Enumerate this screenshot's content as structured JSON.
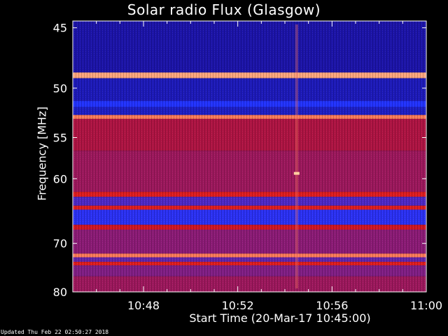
{
  "chart_data": {
    "type": "heatmap",
    "title": "Solar radio Flux (Glasgow)",
    "ylabel": "Frequency [MHz]",
    "xlabel": "Start Time (20-Mar-17 10:45:00)",
    "x_axis": {
      "unit": "time",
      "range": [
        "10:45",
        "11:00"
      ],
      "tick_labels": [
        "10:48",
        "10:52",
        "10:56",
        "11:00"
      ]
    },
    "y_axis": {
      "unit": "MHz",
      "range": [
        44.5,
        80
      ],
      "tick_labels": [
        "45",
        "50",
        "55",
        "60",
        "70",
        "80"
      ],
      "scale": "reciprocal"
    },
    "colormap": [
      "#1a0a8c",
      "#2233ff",
      "#7a1f8f",
      "#c0102a",
      "#ff2a14",
      "#ffd0a0"
    ],
    "bands": [
      {
        "from": 44.5,
        "to": 48.6,
        "level": 0.05
      },
      {
        "from": 48.6,
        "to": 49.1,
        "level": 0.95
      },
      {
        "from": 49.1,
        "to": 51.2,
        "level": 0.08
      },
      {
        "from": 51.2,
        "to": 51.8,
        "level": 0.2
      },
      {
        "from": 51.8,
        "to": 52.6,
        "level": 0.1
      },
      {
        "from": 52.6,
        "to": 53.0,
        "level": 0.9
      },
      {
        "from": 53.0,
        "to": 56.5,
        "level": 0.55
      },
      {
        "from": 56.5,
        "to": 61.8,
        "level": 0.5
      },
      {
        "from": 61.8,
        "to": 62.5,
        "level": 0.7
      },
      {
        "from": 62.5,
        "to": 63.8,
        "level": 0.3
      },
      {
        "from": 63.8,
        "to": 64.4,
        "level": 0.7
      },
      {
        "from": 64.4,
        "to": 66.8,
        "level": 0.22
      },
      {
        "from": 66.8,
        "to": 67.6,
        "level": 0.65
      },
      {
        "from": 67.6,
        "to": 71.9,
        "level": 0.45
      },
      {
        "from": 71.9,
        "to": 72.6,
        "level": 0.9
      },
      {
        "from": 72.6,
        "to": 73.5,
        "level": 0.35
      },
      {
        "from": 73.5,
        "to": 74.2,
        "level": 0.7
      },
      {
        "from": 74.2,
        "to": 76.5,
        "level": 0.42
      },
      {
        "from": 76.5,
        "to": 80.0,
        "level": 0.5
      }
    ],
    "burst_time": "10:54:30",
    "updated": "Updated Thu Feb 22 02:50:27 2018"
  }
}
